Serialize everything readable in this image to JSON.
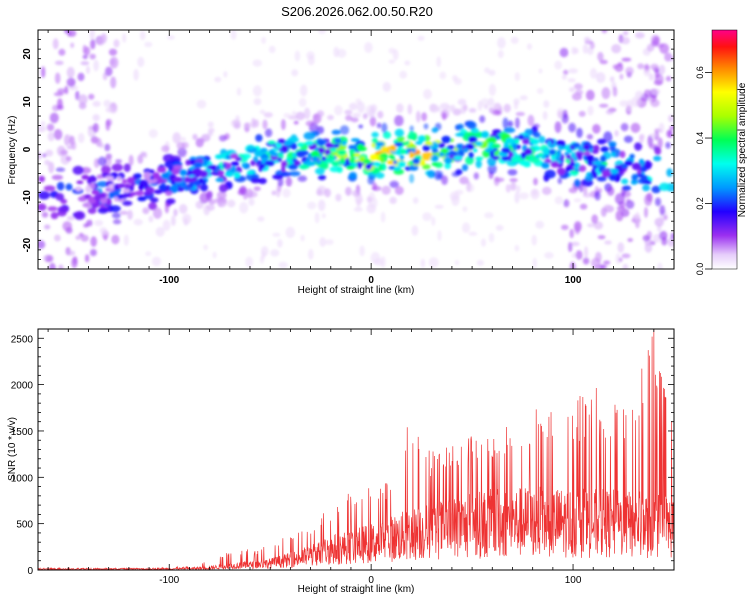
{
  "title": "S206.2026.062.00.50.R20",
  "chart_data": [
    {
      "type": "heatmap",
      "xlabel": "Height of straight line (km)",
      "ylabel": "Frequency (Hz)",
      "xlim": [
        -165,
        150
      ],
      "ylim": [
        -25,
        25
      ],
      "x_ticks": [
        -100,
        0,
        100
      ],
      "y_ticks": [
        -20,
        -10,
        0,
        10,
        20
      ],
      "colorbar": {
        "label": "Normalized spectral amplitude",
        "range": [
          0.0,
          0.73
        ],
        "ticks": [
          0.0,
          0.2,
          0.4,
          0.6
        ],
        "tick_labels": [
          "0.0",
          "0.2",
          "0.4",
          "0.6"
        ]
      },
      "ridge": {
        "x": [
          -165,
          -150,
          -120,
          -100,
          -80,
          -60,
          -40,
          -20,
          0,
          20,
          40,
          60,
          80,
          100,
          120,
          140,
          150
        ],
        "freq_center": [
          -10,
          -9,
          -8,
          -6.5,
          -4,
          -2,
          -1,
          -1,
          -1,
          -1,
          0,
          1,
          -0.5,
          -2,
          -3,
          -5,
          -6
        ],
        "peak_amplitude": [
          0.1,
          0.12,
          0.18,
          0.25,
          0.3,
          0.33,
          0.36,
          0.45,
          0.55,
          0.62,
          0.45,
          0.42,
          0.38,
          0.3,
          0.28,
          0.25,
          0.22
        ]
      }
    },
    {
      "type": "line",
      "xlabel": "Height of straight line (km)",
      "ylabel": "SNR (10 * v/v)",
      "xlim": [
        -165,
        150
      ],
      "ylim": [
        0,
        2600
      ],
      "x_ticks": [
        -100,
        0,
        100
      ],
      "y_ticks": [
        0,
        500,
        1000,
        1500,
        2000,
        2500
      ],
      "color": "#ee3333",
      "series": [
        {
          "name": "SNR",
          "x": [
            -165,
            -140,
            -110,
            -90,
            -80,
            -70,
            -60,
            -50,
            -40,
            -30,
            -20,
            -10,
            0,
            10,
            20,
            30,
            40,
            50,
            60,
            70,
            80,
            90,
            100,
            110,
            120,
            130,
            140,
            150
          ],
          "envelope": [
            20,
            20,
            20,
            40,
            100,
            250,
            220,
            280,
            380,
            480,
            700,
            850,
            900,
            1000,
            1700,
            1300,
            1350,
            1500,
            1500,
            1700,
            1750,
            1700,
            1850,
            2000,
            1800,
            1900,
            2600,
            1500
          ],
          "baseline": [
            15,
            15,
            18,
            25,
            40,
            70,
            90,
            120,
            180,
            260,
            360,
            420,
            480,
            560,
            640,
            700,
            760,
            800,
            840,
            860,
            860,
            850,
            850,
            840,
            830,
            820,
            800,
            780
          ]
        }
      ]
    }
  ]
}
